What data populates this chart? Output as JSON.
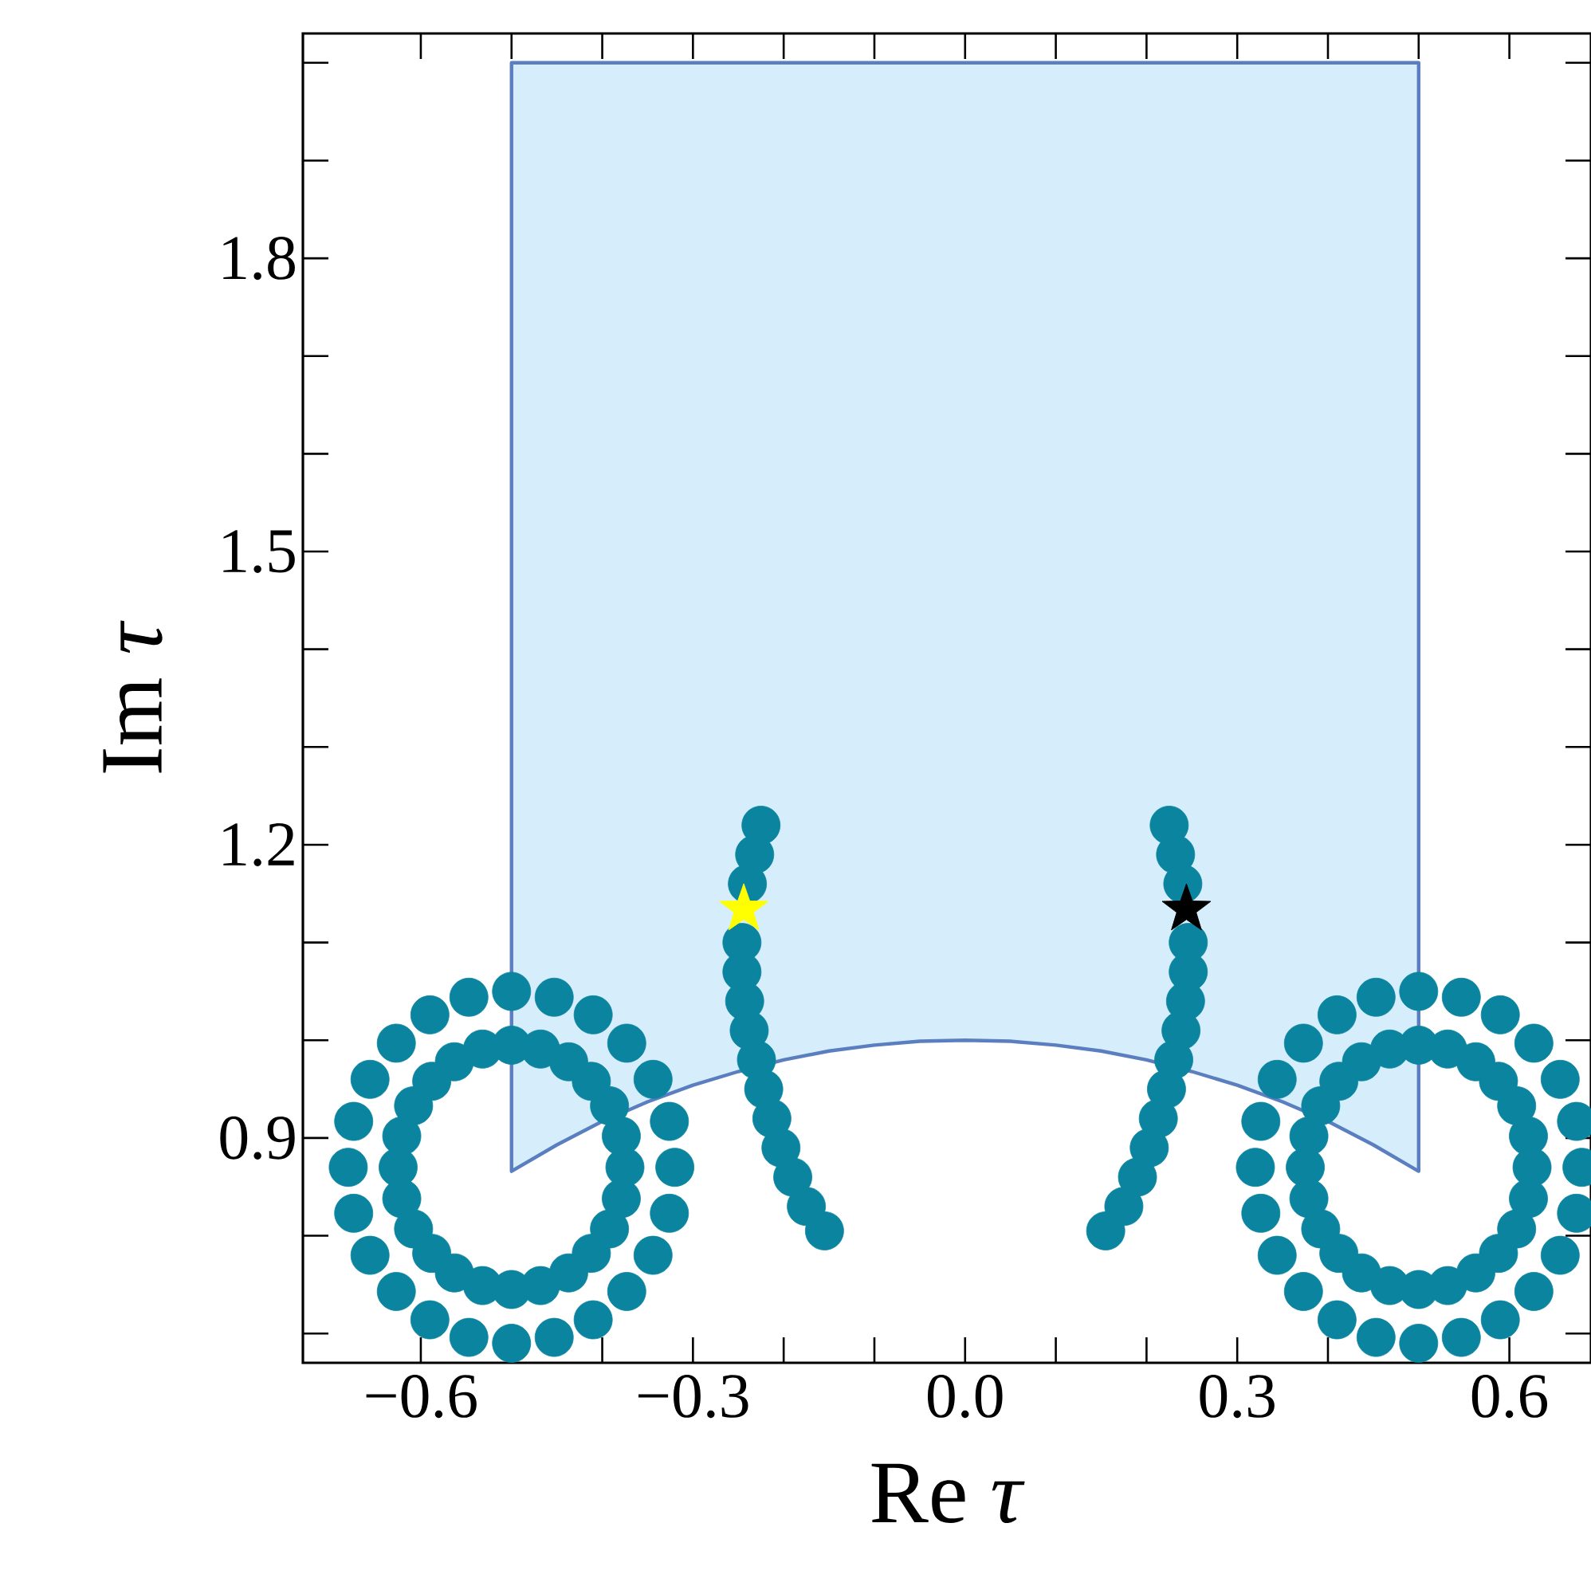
{
  "chart_data": {
    "type": "scatter",
    "xlabel": "Re *τ*",
    "ylabel": "Im *τ*",
    "xlim": [
      -0.73,
      0.69
    ],
    "ylim": [
      0.67,
      2.03
    ],
    "xticks": [
      {
        "value": -0.6,
        "label": "−0.6"
      },
      {
        "value": -0.5,
        "label": null
      },
      {
        "value": -0.4,
        "label": null
      },
      {
        "value": -0.3,
        "label": "−0.3"
      },
      {
        "value": -0.2,
        "label": null
      },
      {
        "value": -0.1,
        "label": null
      },
      {
        "value": 0.0,
        "label": "0.0"
      },
      {
        "value": 0.1,
        "label": null
      },
      {
        "value": 0.2,
        "label": null
      },
      {
        "value": 0.3,
        "label": "0.3"
      },
      {
        "value": 0.4,
        "label": null
      },
      {
        "value": 0.5,
        "label": null
      },
      {
        "value": 0.6,
        "label": "0.6"
      }
    ],
    "yticks": [
      {
        "value": 0.7,
        "label": null
      },
      {
        "value": 0.8,
        "label": null
      },
      {
        "value": 0.9,
        "label": "0.9"
      },
      {
        "value": 1.0,
        "label": null
      },
      {
        "value": 1.1,
        "label": null
      },
      {
        "value": 1.2,
        "label": "1.2"
      },
      {
        "value": 1.3,
        "label": null
      },
      {
        "value": 1.4,
        "label": null
      },
      {
        "value": 1.5,
        "label": "1.5"
      },
      {
        "value": 1.6,
        "label": null
      },
      {
        "value": 1.7,
        "label": null
      },
      {
        "value": 1.8,
        "label": "1.8"
      },
      {
        "value": 1.9,
        "label": null
      },
      {
        "value": 2.0,
        "label": null
      }
    ],
    "grid": false,
    "series": [
      {
        "type": "area",
        "color": "#d6eefc",
        "x": [
          -0.5,
          -0.5,
          0.5,
          0.5,
          0.45,
          0.4,
          0.35,
          0.3,
          0.25,
          0.2,
          0.15,
          0.1,
          0.05,
          0.0,
          -0.05,
          -0.1,
          -0.15,
          -0.2,
          -0.25,
          -0.3,
          -0.35,
          -0.4,
          -0.45,
          -0.5
        ],
        "values": [
          0.866,
          2.0,
          2.0,
          0.866,
          0.893,
          0.917,
          0.937,
          0.954,
          0.968,
          0.98,
          0.989,
          0.995,
          0.999,
          1.0,
          0.999,
          0.995,
          0.989,
          0.98,
          0.968,
          0.954,
          0.937,
          0.917,
          0.893,
          0.866
        ]
      },
      {
        "marker": "circle",
        "color": "#0b849f",
        "x": [
          -0.375,
          -0.379,
          -0.392,
          -0.412,
          -0.437,
          -0.468,
          -0.5,
          -0.532,
          -0.563,
          -0.588,
          -0.608,
          -0.621,
          -0.625,
          -0.621,
          -0.608,
          -0.588,
          -0.563,
          -0.532,
          -0.5,
          -0.468,
          -0.437,
          -0.412,
          -0.392,
          -0.379,
          -0.32,
          -0.326,
          -0.344,
          -0.373,
          -0.41,
          -0.453,
          -0.5,
          -0.547,
          -0.59,
          -0.627,
          -0.656,
          -0.674,
          -0.68,
          -0.674,
          -0.656,
          -0.627,
          -0.59,
          -0.547,
          -0.5,
          -0.453,
          -0.41,
          -0.373,
          -0.344,
          -0.326
        ],
        "values": [
          0.87,
          0.902,
          0.933,
          0.958,
          0.978,
          0.991,
          0.995,
          0.991,
          0.978,
          0.958,
          0.933,
          0.902,
          0.87,
          0.838,
          0.807,
          0.782,
          0.762,
          0.749,
          0.745,
          0.749,
          0.762,
          0.782,
          0.807,
          0.838,
          0.87,
          0.917,
          0.96,
          0.997,
          1.026,
          1.044,
          1.05,
          1.044,
          1.026,
          0.997,
          0.96,
          0.917,
          0.87,
          0.823,
          0.78,
          0.743,
          0.714,
          0.696,
          0.69,
          0.696,
          0.714,
          0.743,
          0.78,
          0.823
        ]
      },
      {
        "marker": "circle",
        "color": "#0b849f",
        "x": [
          0.375,
          0.379,
          0.392,
          0.412,
          0.437,
          0.468,
          0.5,
          0.532,
          0.563,
          0.588,
          0.608,
          0.621,
          0.625,
          0.621,
          0.608,
          0.588,
          0.563,
          0.532,
          0.5,
          0.468,
          0.437,
          0.412,
          0.392,
          0.379,
          0.32,
          0.326,
          0.344,
          0.373,
          0.41,
          0.453,
          0.5,
          0.547,
          0.59,
          0.627,
          0.656,
          0.674,
          0.68,
          0.674,
          0.656,
          0.627,
          0.59,
          0.547,
          0.5,
          0.453,
          0.41,
          0.373,
          0.344,
          0.326
        ],
        "values": [
          0.87,
          0.902,
          0.933,
          0.958,
          0.978,
          0.991,
          0.995,
          0.991,
          0.978,
          0.958,
          0.933,
          0.902,
          0.87,
          0.838,
          0.807,
          0.782,
          0.762,
          0.749,
          0.745,
          0.749,
          0.762,
          0.782,
          0.807,
          0.838,
          0.87,
          0.917,
          0.96,
          0.997,
          1.026,
          1.044,
          1.05,
          1.044,
          1.026,
          0.997,
          0.96,
          0.917,
          0.87,
          0.823,
          0.78,
          0.743,
          0.714,
          0.696,
          0.69,
          0.696,
          0.714,
          0.743,
          0.78,
          0.823
        ]
      },
      {
        "marker": "circle",
        "color": "#0b849f",
        "x": [
          -0.225,
          -0.232,
          -0.24,
          -0.244,
          -0.246,
          -0.246,
          -0.243,
          -0.238,
          -0.23,
          -0.222,
          -0.213,
          -0.203,
          -0.19,
          -0.175,
          -0.155
        ],
        "values": [
          1.22,
          1.19,
          1.16,
          null,
          1.1,
          1.07,
          1.04,
          1.01,
          0.98,
          0.95,
          0.92,
          0.89,
          0.86,
          0.83,
          0.805
        ]
      },
      {
        "marker": "circle",
        "color": "#0b849f",
        "x": [
          0.225,
          0.232,
          0.24,
          0.244,
          0.246,
          0.246,
          0.243,
          0.238,
          0.23,
          0.222,
          0.213,
          0.203,
          0.19,
          0.175,
          0.155
        ],
        "values": [
          1.22,
          1.19,
          1.16,
          null,
          1.1,
          1.07,
          1.04,
          1.01,
          0.98,
          0.95,
          0.92,
          0.89,
          0.86,
          0.83,
          0.805
        ]
      },
      {
        "marker": "star",
        "color": "#ffff00",
        "x": [
          -0.244
        ],
        "values": [
          1.134
        ]
      },
      {
        "marker": "star",
        "color": "#000000",
        "x": [
          0.244
        ],
        "values": [
          1.134
        ]
      }
    ]
  }
}
